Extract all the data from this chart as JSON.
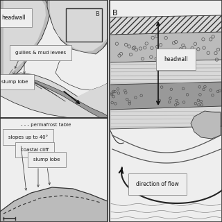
{
  "label_headwall_A": "headwall",
  "label_gullies": "gullies & mud levees",
  "label_slump_lobe_A": "slump lobe",
  "label_permafrost": "- - - permafrost table",
  "label_slopes": "slopes up to 40°",
  "label_coastal": "coastal cliff",
  "label_slump_lobe_leg": "slump lobe",
  "label_headwall_B": "headwall",
  "label_direction": "direction of flow",
  "label_B": "B",
  "col_white": "#ffffff",
  "col_vlight": "#eeeeee",
  "col_light": "#d8d8d8",
  "col_mid": "#bbbbbb",
  "col_dark": "#999999",
  "col_darker": "#777777",
  "col_outline": "#333333",
  "col_bg": "#e0e0e0"
}
